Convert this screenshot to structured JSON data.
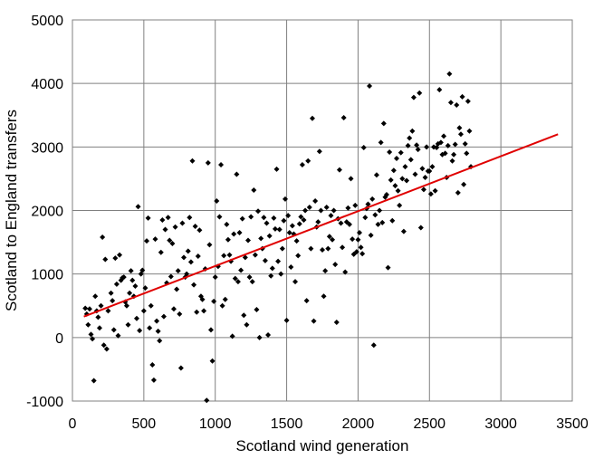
{
  "chart_data": {
    "type": "scatter",
    "xlabel": "Scotland wind generation",
    "ylabel": "Scotland to England transfers",
    "xlim": [
      0,
      3500
    ],
    "ylim": [
      -1000,
      5000
    ],
    "x_ticks": [
      0,
      500,
      1000,
      1500,
      2000,
      2500,
      3000,
      3500
    ],
    "y_ticks": [
      -1000,
      0,
      1000,
      2000,
      3000,
      4000,
      5000
    ],
    "grid": true,
    "colors": {
      "points": "#000000",
      "trendline": "#e00000",
      "grid": "#808080"
    },
    "trendline": {
      "x": [
        80,
        3400
      ],
      "y": [
        330,
        3200
      ]
    },
    "points": [
      [
        90,
        460
      ],
      [
        100,
        370
      ],
      [
        110,
        200
      ],
      [
        120,
        450
      ],
      [
        130,
        50
      ],
      [
        140,
        -20
      ],
      [
        150,
        -680
      ],
      [
        160,
        650
      ],
      [
        170,
        420
      ],
      [
        180,
        320
      ],
      [
        190,
        150
      ],
      [
        200,
        500
      ],
      [
        210,
        1580
      ],
      [
        220,
        -120
      ],
      [
        230,
        1230
      ],
      [
        240,
        -180
      ],
      [
        250,
        420
      ],
      [
        270,
        700
      ],
      [
        280,
        580
      ],
      [
        290,
        120
      ],
      [
        300,
        1250
      ],
      [
        310,
        840
      ],
      [
        320,
        30
      ],
      [
        330,
        1300
      ],
      [
        340,
        900
      ],
      [
        350,
        940
      ],
      [
        360,
        950
      ],
      [
        370,
        560
      ],
      [
        380,
        500
      ],
      [
        390,
        200
      ],
      [
        400,
        700
      ],
      [
        410,
        1050
      ],
      [
        420,
        900
      ],
      [
        430,
        650
      ],
      [
        440,
        810
      ],
      [
        450,
        300
      ],
      [
        460,
        2060
      ],
      [
        470,
        110
      ],
      [
        480,
        1000
      ],
      [
        490,
        1060
      ],
      [
        500,
        420
      ],
      [
        510,
        780
      ],
      [
        520,
        1520
      ],
      [
        530,
        1880
      ],
      [
        540,
        150
      ],
      [
        550,
        500
      ],
      [
        560,
        -430
      ],
      [
        570,
        -670
      ],
      [
        580,
        1550
      ],
      [
        590,
        260
      ],
      [
        600,
        100
      ],
      [
        610,
        -50
      ],
      [
        620,
        1340
      ],
      [
        630,
        1850
      ],
      [
        640,
        330
      ],
      [
        650,
        1700
      ],
      [
        660,
        860
      ],
      [
        670,
        1890
      ],
      [
        680,
        1530
      ],
      [
        690,
        960
      ],
      [
        700,
        1480
      ],
      [
        710,
        450
      ],
      [
        720,
        1740
      ],
      [
        730,
        760
      ],
      [
        740,
        1050
      ],
      [
        750,
        370
      ],
      [
        760,
        -480
      ],
      [
        770,
        1800
      ],
      [
        780,
        1260
      ],
      [
        790,
        950
      ],
      [
        800,
        1000
      ],
      [
        810,
        1360
      ],
      [
        820,
        1890
      ],
      [
        830,
        1190
      ],
      [
        840,
        2780
      ],
      [
        850,
        830
      ],
      [
        860,
        1750
      ],
      [
        870,
        400
      ],
      [
        880,
        1280
      ],
      [
        890,
        1690
      ],
      [
        900,
        650
      ],
      [
        910,
        600
      ],
      [
        920,
        420
      ],
      [
        930,
        1080
      ],
      [
        940,
        -990
      ],
      [
        950,
        2750
      ],
      [
        960,
        1460
      ],
      [
        970,
        120
      ],
      [
        980,
        -370
      ],
      [
        990,
        570
      ],
      [
        1000,
        950
      ],
      [
        1010,
        2150
      ],
      [
        1020,
        1120
      ],
      [
        1030,
        1900
      ],
      [
        1040,
        2720
      ],
      [
        1050,
        500
      ],
      [
        1060,
        1290
      ],
      [
        1070,
        600
      ],
      [
        1080,
        1780
      ],
      [
        1090,
        1540
      ],
      [
        1100,
        1300
      ],
      [
        1110,
        1200
      ],
      [
        1120,
        20
      ],
      [
        1130,
        1630
      ],
      [
        1140,
        930
      ],
      [
        1150,
        2570
      ],
      [
        1160,
        880
      ],
      [
        1170,
        1650
      ],
      [
        1180,
        1060
      ],
      [
        1190,
        1870
      ],
      [
        1200,
        350
      ],
      [
        1210,
        1260
      ],
      [
        1220,
        200
      ],
      [
        1230,
        1530
      ],
      [
        1240,
        950
      ],
      [
        1250,
        1900
      ],
      [
        1260,
        880
      ],
      [
        1270,
        2320
      ],
      [
        1280,
        1300
      ],
      [
        1290,
        440
      ],
      [
        1300,
        1990
      ],
      [
        1310,
        0
      ],
      [
        1320,
        1560
      ],
      [
        1330,
        1400
      ],
      [
        1340,
        1890
      ],
      [
        1350,
        1210
      ],
      [
        1360,
        1800
      ],
      [
        1370,
        40
      ],
      [
        1380,
        1600
      ],
      [
        1390,
        970
      ],
      [
        1400,
        1090
      ],
      [
        1410,
        1880
      ],
      [
        1420,
        1710
      ],
      [
        1430,
        2650
      ],
      [
        1440,
        1200
      ],
      [
        1450,
        1700
      ],
      [
        1460,
        1000
      ],
      [
        1470,
        1400
      ],
      [
        1480,
        1840
      ],
      [
        1490,
        2180
      ],
      [
        1500,
        270
      ],
      [
        1510,
        1920
      ],
      [
        1520,
        1650
      ],
      [
        1530,
        1110
      ],
      [
        1540,
        1760
      ],
      [
        1550,
        1630
      ],
      [
        1560,
        880
      ],
      [
        1570,
        1520
      ],
      [
        1580,
        1290
      ],
      [
        1590,
        1790
      ],
      [
        1600,
        1900
      ],
      [
        1610,
        2720
      ],
      [
        1620,
        1850
      ],
      [
        1630,
        2000
      ],
      [
        1640,
        580
      ],
      [
        1650,
        2780
      ],
      [
        1660,
        2050
      ],
      [
        1670,
        1400
      ],
      [
        1680,
        3450
      ],
      [
        1690,
        260
      ],
      [
        1700,
        2150
      ],
      [
        1710,
        1740
      ],
      [
        1720,
        1820
      ],
      [
        1730,
        2930
      ],
      [
        1740,
        2000
      ],
      [
        1750,
        1380
      ],
      [
        1760,
        650
      ],
      [
        1770,
        1050
      ],
      [
        1780,
        2050
      ],
      [
        1790,
        1400
      ],
      [
        1800,
        1590
      ],
      [
        1810,
        1920
      ],
      [
        1820,
        1540
      ],
      [
        1830,
        2000
      ],
      [
        1840,
        1150
      ],
      [
        1850,
        240
      ],
      [
        1860,
        1870
      ],
      [
        1870,
        2640
      ],
      [
        1880,
        1800
      ],
      [
        1890,
        1420
      ],
      [
        1900,
        3460
      ],
      [
        1910,
        1030
      ],
      [
        1920,
        1820
      ],
      [
        1930,
        2040
      ],
      [
        1940,
        1780
      ],
      [
        1950,
        2500
      ],
      [
        1960,
        1550
      ],
      [
        1970,
        1310
      ],
      [
        1980,
        2080
      ],
      [
        1990,
        1350
      ],
      [
        2000,
        1540
      ],
      [
        2010,
        1650
      ],
      [
        2020,
        1420
      ],
      [
        2030,
        1320
      ],
      [
        2040,
        2990
      ],
      [
        2050,
        1890
      ],
      [
        2060,
        2030
      ],
      [
        2070,
        2100
      ],
      [
        2080,
        3960
      ],
      [
        2090,
        1610
      ],
      [
        2100,
        2180
      ],
      [
        2110,
        -120
      ],
      [
        2120,
        1930
      ],
      [
        2130,
        2560
      ],
      [
        2140,
        1780
      ],
      [
        2150,
        2000
      ],
      [
        2160,
        3070
      ],
      [
        2170,
        1810
      ],
      [
        2180,
        3370
      ],
      [
        2190,
        2210
      ],
      [
        2200,
        2250
      ],
      [
        2210,
        1100
      ],
      [
        2220,
        2920
      ],
      [
        2230,
        2480
      ],
      [
        2240,
        1840
      ],
      [
        2250,
        2630
      ],
      [
        2260,
        2390
      ],
      [
        2270,
        2820
      ],
      [
        2280,
        2310
      ],
      [
        2290,
        2080
      ],
      [
        2300,
        2910
      ],
      [
        2310,
        2500
      ],
      [
        2320,
        1670
      ],
      [
        2330,
        2690
      ],
      [
        2340,
        2470
      ],
      [
        2350,
        3020
      ],
      [
        2360,
        3140
      ],
      [
        2370,
        2800
      ],
      [
        2380,
        3250
      ],
      [
        2390,
        3780
      ],
      [
        2400,
        2570
      ],
      [
        2410,
        3030
      ],
      [
        2420,
        2960
      ],
      [
        2430,
        3850
      ],
      [
        2440,
        1730
      ],
      [
        2450,
        2660
      ],
      [
        2460,
        2330
      ],
      [
        2470,
        2520
      ],
      [
        2480,
        3000
      ],
      [
        2490,
        2620
      ],
      [
        2500,
        2620
      ],
      [
        2510,
        2260
      ],
      [
        2520,
        2690
      ],
      [
        2530,
        3000
      ],
      [
        2540,
        2310
      ],
      [
        2550,
        2990
      ],
      [
        2560,
        3050
      ],
      [
        2570,
        3900
      ],
      [
        2580,
        3070
      ],
      [
        2590,
        2880
      ],
      [
        2600,
        3170
      ],
      [
        2610,
        2900
      ],
      [
        2620,
        2520
      ],
      [
        2630,
        3020
      ],
      [
        2640,
        4150
      ],
      [
        2650,
        3700
      ],
      [
        2660,
        2780
      ],
      [
        2670,
        2880
      ],
      [
        2680,
        3040
      ],
      [
        2690,
        3660
      ],
      [
        2700,
        2280
      ],
      [
        2710,
        3300
      ],
      [
        2720,
        3200
      ],
      [
        2730,
        3790
      ],
      [
        2740,
        2410
      ],
      [
        2750,
        3050
      ],
      [
        2760,
        2900
      ],
      [
        2770,
        3720
      ],
      [
        2780,
        3250
      ],
      [
        2790,
        2690
      ]
    ]
  }
}
